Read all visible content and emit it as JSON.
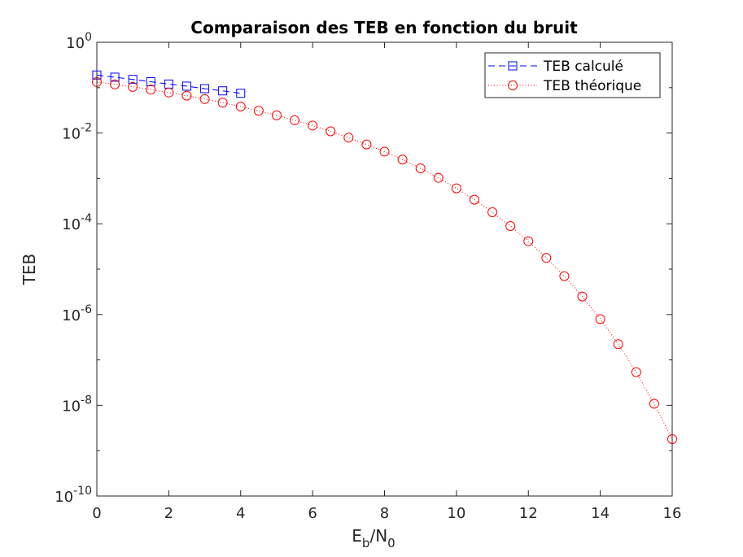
{
  "chart_data": {
    "type": "line",
    "title": "Comparaison des TEB en fonction du bruit",
    "xlabel": {
      "base": "E",
      "sub1": "b",
      "mid": "/N",
      "sub2": "0"
    },
    "ylabel": "TEB",
    "xlim": [
      0,
      16
    ],
    "ylim": [
      1e-10,
      1
    ],
    "yscale": "log",
    "x_ticks": [
      "0",
      "2",
      "4",
      "6",
      "8",
      "10",
      "12",
      "14",
      "16"
    ],
    "y_ticks": [
      {
        "base": "10",
        "exp": "0"
      },
      {
        "base": "10",
        "exp": "-2"
      },
      {
        "base": "10",
        "exp": "-4"
      },
      {
        "base": "10",
        "exp": "-6"
      },
      {
        "base": "10",
        "exp": "-8"
      },
      {
        "base": "10",
        "exp": "-10"
      }
    ],
    "grid": false,
    "legend_position": "top-right",
    "series": [
      {
        "name": "TEB calculé",
        "color": "#0000ff",
        "line": "dashed",
        "marker": "square",
        "x": [
          0,
          0.5,
          1,
          1.5,
          2,
          2.5,
          3,
          3.5,
          4
        ],
        "y": [
          0.19,
          0.17,
          0.152,
          0.135,
          0.12,
          0.108,
          0.095,
          0.085,
          0.075
        ]
      },
      {
        "name": "TEB théorique",
        "color": "#ff0000",
        "line": "dotted",
        "marker": "circle",
        "x": [
          0,
          0.5,
          1,
          1.5,
          2,
          2.5,
          3,
          3.5,
          4,
          4.5,
          5,
          5.5,
          6,
          6.5,
          7,
          7.5,
          8,
          8.5,
          9,
          9.5,
          10,
          10.5,
          11,
          11.5,
          12,
          12.5,
          13,
          13.5,
          14,
          14.5,
          15,
          15.5,
          16
        ],
        "y": [
          0.1334,
          0.1183,
          0.104,
          0.0906,
          0.0781,
          0.0666,
          0.0561,
          0.0467,
          0.0383,
          0.0309,
          0.0245,
          0.0191,
          0.0146,
          0.0109,
          0.0079,
          0.0056,
          0.0039,
          0.0026,
          0.00167,
          0.00103,
          0.000605,
          0.000339,
          0.00018,
          8.9e-05,
          4.12e-05,
          1.77e-05,
          7.02e-06,
          2.5e-06,
          7.96e-07,
          2.22e-07,
          5.36e-08,
          1.08e-08,
          1.8e-09
        ]
      }
    ]
  }
}
